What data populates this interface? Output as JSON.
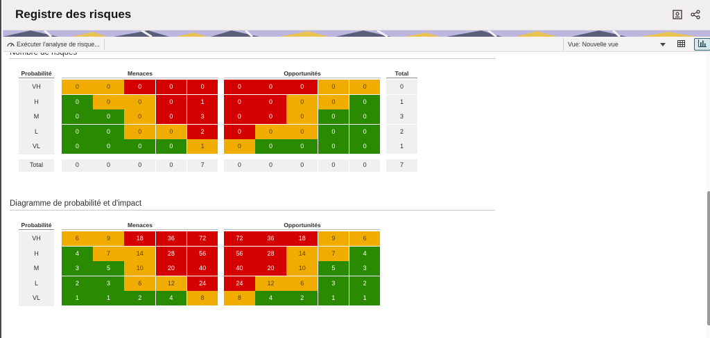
{
  "header": {
    "title": "Registre des risques"
  },
  "toolbar": {
    "run_analysis_label": "Exécuter l'analyse de risque...",
    "view_label": "Vue: Nouvelle vue"
  },
  "section1": {
    "title": "Nombre de risques",
    "prob_header": "Probabilité",
    "threats_header": "Menaces",
    "opps_header": "Opportunités",
    "total_header": "Total",
    "row_labels": [
      "VH",
      "H",
      "M",
      "L",
      "VL"
    ],
    "total_row_label": "Total",
    "threats": [
      [
        0,
        0,
        0,
        0,
        0
      ],
      [
        0,
        0,
        0,
        0,
        1
      ],
      [
        0,
        0,
        0,
        0,
        3
      ],
      [
        0,
        0,
        0,
        0,
        2
      ],
      [
        0,
        0,
        0,
        0,
        1
      ]
    ],
    "threats_colors": [
      [
        "a",
        "a",
        "r",
        "r",
        "r"
      ],
      [
        "g",
        "a",
        "a",
        "r",
        "r"
      ],
      [
        "g",
        "g",
        "a",
        "r",
        "r"
      ],
      [
        "g",
        "g",
        "a",
        "a",
        "r"
      ],
      [
        "g",
        "g",
        "g",
        "g",
        "a"
      ]
    ],
    "opps": [
      [
        0,
        0,
        0,
        0,
        0
      ],
      [
        0,
        0,
        0,
        0,
        0
      ],
      [
        0,
        0,
        0,
        0,
        0
      ],
      [
        0,
        0,
        0,
        0,
        0
      ],
      [
        0,
        0,
        0,
        0,
        0
      ]
    ],
    "opps_colors": [
      [
        "r",
        "r",
        "r",
        "a",
        "a"
      ],
      [
        "r",
        "r",
        "a",
        "a",
        "g"
      ],
      [
        "r",
        "r",
        "a",
        "g",
        "g"
      ],
      [
        "r",
        "a",
        "a",
        "g",
        "g"
      ],
      [
        "a",
        "g",
        "g",
        "g",
        "g"
      ]
    ],
    "row_totals": [
      0,
      1,
      3,
      2,
      1
    ],
    "threats_col_totals": [
      0,
      0,
      0,
      0,
      7
    ],
    "opps_col_totals": [
      0,
      0,
      0,
      0,
      0
    ],
    "grand_total": 7
  },
  "section2": {
    "title": "Diagramme de probabilité et d'impact",
    "prob_header": "Probabilité",
    "threats_header": "Menaces",
    "opps_header": "Opportunités",
    "row_labels": [
      "VH",
      "H",
      "M",
      "L",
      "VL"
    ],
    "threats": [
      [
        6,
        9,
        18,
        36,
        72
      ],
      [
        4,
        7,
        14,
        28,
        56
      ],
      [
        3,
        5,
        10,
        20,
        40
      ],
      [
        2,
        3,
        6,
        12,
        24
      ],
      [
        1,
        1,
        2,
        4,
        8
      ]
    ],
    "threats_colors": [
      [
        "a",
        "a",
        "r",
        "r",
        "r"
      ],
      [
        "g",
        "a",
        "a",
        "r",
        "r"
      ],
      [
        "g",
        "g",
        "a",
        "r",
        "r"
      ],
      [
        "g",
        "g",
        "a",
        "a",
        "r"
      ],
      [
        "g",
        "g",
        "g",
        "g",
        "a"
      ]
    ],
    "opps": [
      [
        72,
        36,
        18,
        9,
        6
      ],
      [
        56,
        28,
        14,
        7,
        4
      ],
      [
        40,
        20,
        10,
        5,
        3
      ],
      [
        24,
        12,
        6,
        3,
        2
      ],
      [
        8,
        4,
        2,
        1,
        1
      ]
    ],
    "opps_colors": [
      [
        "r",
        "r",
        "r",
        "a",
        "a"
      ],
      [
        "r",
        "r",
        "a",
        "a",
        "g"
      ],
      [
        "r",
        "r",
        "a",
        "g",
        "g"
      ],
      [
        "r",
        "a",
        "a",
        "g",
        "g"
      ],
      [
        "a",
        "g",
        "g",
        "g",
        "g"
      ]
    ]
  },
  "icons": {
    "run": "gauge-icon",
    "dashboard": "dashboard-icon",
    "share": "share-icon",
    "table": "table-icon",
    "chart": "bar-chart-icon",
    "dropdown": "chevron-down-icon"
  }
}
